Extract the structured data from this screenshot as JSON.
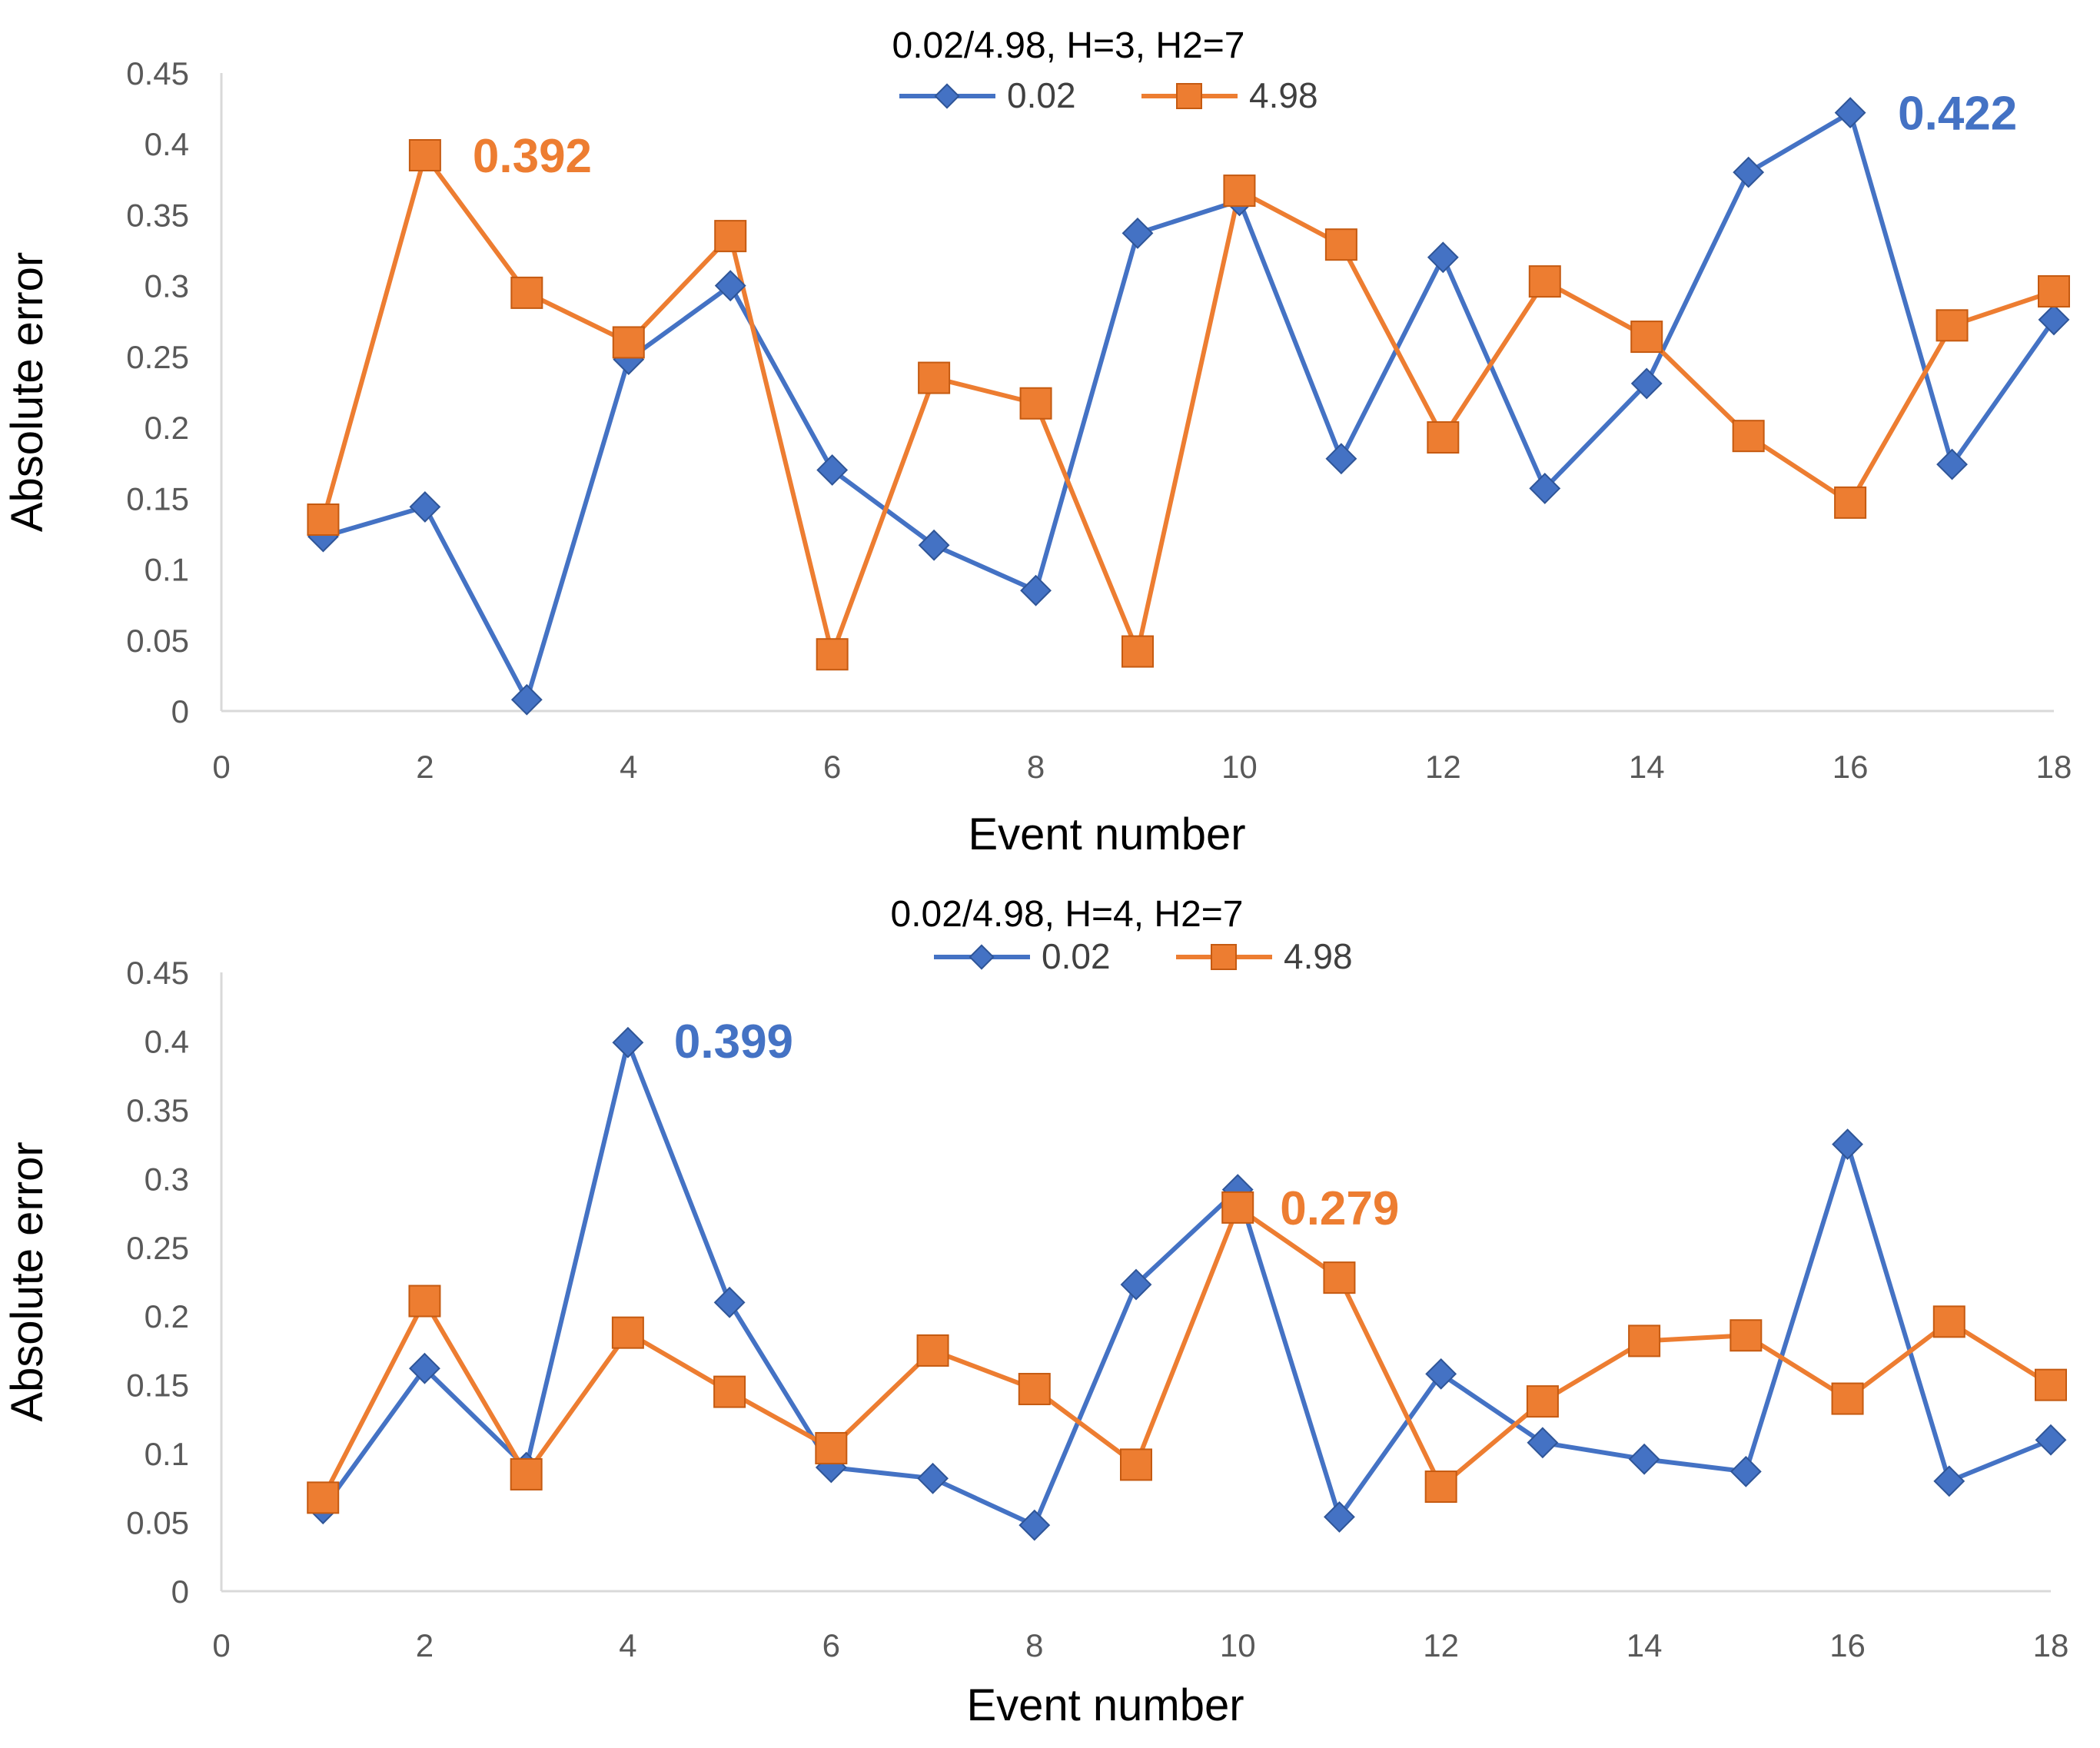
{
  "chart_data": [
    {
      "type": "line",
      "title": "0.02/4.98, H=3, H2=7",
      "xlabel": "Event number",
      "ylabel": "Absolute error",
      "xlim": [
        0,
        18
      ],
      "ylim": [
        0,
        0.45
      ],
      "xticks": [
        "0",
        "2",
        "4",
        "6",
        "8",
        "10",
        "12",
        "14",
        "16",
        "18"
      ],
      "yticks": [
        "0",
        "0.05",
        "0.1",
        "0.15",
        "0.2",
        "0.25",
        "0.3",
        "0.35",
        "0.4",
        "0.45"
      ],
      "legend_position": "top-center",
      "grid": false,
      "x": [
        1,
        2,
        3,
        4,
        5,
        6,
        7,
        8,
        9,
        10,
        11,
        12,
        13,
        14,
        15,
        16,
        17,
        18
      ],
      "series": [
        {
          "name": "0.02",
          "color": "#4472C4",
          "marker": "diamond",
          "values": [
            0.123,
            0.144,
            0.008,
            0.248,
            0.3,
            0.17,
            0.117,
            0.085,
            0.337,
            0.36,
            0.178,
            0.32,
            0.157,
            0.231,
            0.38,
            0.422,
            0.174,
            0.276
          ]
        },
        {
          "name": "4.98",
          "color": "#ED7D31",
          "marker": "square",
          "values": [
            0.135,
            0.392,
            0.295,
            0.26,
            0.335,
            0.04,
            0.235,
            0.217,
            0.042,
            0.367,
            0.329,
            0.193,
            0.303,
            0.264,
            0.194,
            0.147,
            0.272,
            0.296
          ]
        }
      ],
      "annotations": [
        {
          "text": "0.392",
          "series": "4.98",
          "x": 2,
          "y": 0.392,
          "color": "#ED7D31"
        },
        {
          "text": "0.422",
          "series": "0.02",
          "x": 16,
          "y": 0.422,
          "color": "#4472C4"
        }
      ]
    },
    {
      "type": "line",
      "title": "0.02/4.98, H=4, H2=7",
      "xlabel": "Event number",
      "ylabel": "Absolute error",
      "xlim": [
        0,
        18
      ],
      "ylim": [
        0,
        0.45
      ],
      "xticks": [
        "0",
        "2",
        "4",
        "6",
        "8",
        "10",
        "12",
        "14",
        "16",
        "18"
      ],
      "yticks": [
        "0",
        "0.05",
        "0.1",
        "0.15",
        "0.2",
        "0.25",
        "0.3",
        "0.35",
        "0.4",
        "0.45"
      ],
      "legend_position": "top-center",
      "grid": false,
      "x": [
        1,
        2,
        3,
        4,
        5,
        6,
        7,
        8,
        9,
        10,
        11,
        12,
        13,
        14,
        15,
        16,
        17,
        18
      ],
      "series": [
        {
          "name": "0.02",
          "color": "#4472C4",
          "marker": "diamond",
          "values": [
            0.06,
            0.162,
            0.09,
            0.399,
            0.21,
            0.09,
            0.082,
            0.048,
            0.223,
            0.292,
            0.054,
            0.158,
            0.108,
            0.096,
            0.087,
            0.325,
            0.08,
            0.11
          ]
        },
        {
          "name": "4.98",
          "color": "#ED7D31",
          "marker": "square",
          "values": [
            0.068,
            0.211,
            0.085,
            0.188,
            0.145,
            0.104,
            0.175,
            0.147,
            0.092,
            0.279,
            0.228,
            0.076,
            0.138,
            0.182,
            0.186,
            0.14,
            0.196,
            0.15
          ]
        }
      ],
      "annotations": [
        {
          "text": "0.399",
          "series": "0.02",
          "x": 4,
          "y": 0.399,
          "color": "#4472C4"
        },
        {
          "text": "0.279",
          "series": "4.98",
          "x": 10,
          "y": 0.279,
          "color": "#ED7D31"
        }
      ]
    }
  ]
}
